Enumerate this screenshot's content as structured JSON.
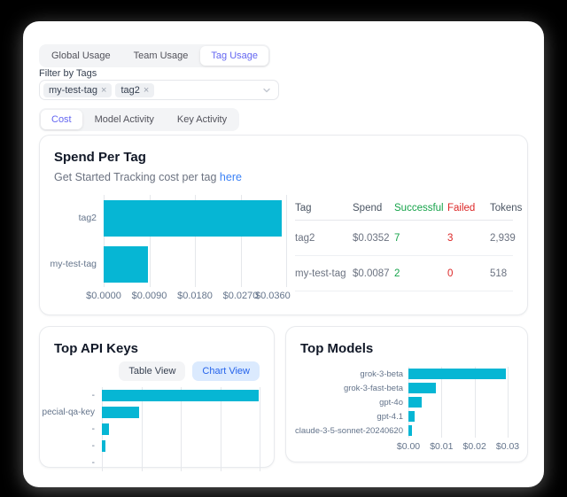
{
  "page": {
    "tabs": [
      {
        "label": "Global Usage",
        "active": false
      },
      {
        "label": "Team Usage",
        "active": false
      },
      {
        "label": "Tag Usage",
        "active": true
      }
    ],
    "filter": {
      "label": "Filter by Tags",
      "selected_tags": [
        "my-test-tag",
        "tag2"
      ]
    },
    "sub_tabs": [
      {
        "label": "Cost",
        "active": true
      },
      {
        "label": "Model Activity",
        "active": false
      },
      {
        "label": "Key Activity",
        "active": false
      }
    ]
  },
  "icons": {
    "remove_tag": "×",
    "chevron_down": "chevron-down"
  },
  "spend_card": {
    "title": "Spend Per Tag",
    "subtitle": "Get Started Tracking cost per tag",
    "subtitle_link": "here",
    "table": {
      "columns": [
        "Tag",
        "Spend",
        "Successful",
        "Failed",
        "Tokens"
      ],
      "rows": [
        {
          "tag": "tag2",
          "spend": "$0.0352",
          "successful": "7",
          "failed": "3",
          "tokens": "2,939"
        },
        {
          "tag": "my-test-tag",
          "spend": "$0.0087",
          "successful": "2",
          "failed": "0",
          "tokens": "518"
        }
      ]
    }
  },
  "api_keys_card": {
    "title": "Top API Keys",
    "table_view_label": "Table View",
    "chart_view_label": "Chart View",
    "active_view": "Chart View"
  },
  "models_card": {
    "title": "Top Models"
  },
  "colors": {
    "bar_cyan": "#06b6d4",
    "accent_purple": "#6366f1",
    "link_blue": "#3b82f6",
    "success_green": "#16a34a",
    "fail_red": "#dc2626",
    "chart_view_bg": "#dbeafe",
    "chart_view_text": "#2563eb"
  },
  "chart_data": [
    {
      "id": "spend_per_tag",
      "type": "bar",
      "orientation": "horizontal",
      "title": "Spend Per Tag",
      "categories": [
        "tag2",
        "my-test-tag"
      ],
      "values": [
        0.0352,
        0.0087
      ],
      "xlim": [
        0,
        0.036
      ],
      "xticks": [
        {
          "v": 0.0,
          "label": "$0.0000"
        },
        {
          "v": 0.009,
          "label": "$0.0090"
        },
        {
          "v": 0.018,
          "label": "$0.0180"
        },
        {
          "v": 0.027,
          "label": "$0.0270"
        },
        {
          "v": 0.036,
          "label": "$0.0360"
        }
      ],
      "bar_color": "#06b6d4",
      "grid": true,
      "legend": false
    },
    {
      "id": "top_api_keys",
      "type": "bar",
      "orientation": "horizontal",
      "title": "Top API Keys",
      "categories": [
        "-",
        "pecial-qa-key",
        "-",
        "-",
        "-"
      ],
      "values": [
        0.0398,
        0.0095,
        0.0017,
        0.0009,
        0
      ],
      "xlim": [
        0,
        0.04
      ],
      "xticks": [
        {
          "v": 0.0,
          "label": ""
        },
        {
          "v": 0.01,
          "label": ""
        },
        {
          "v": 0.02,
          "label": ""
        },
        {
          "v": 0.03,
          "label": ""
        },
        {
          "v": 0.04,
          "label": ""
        }
      ],
      "xaxis_labels_visible": false,
      "bar_color": "#06b6d4",
      "grid": true,
      "legend": false
    },
    {
      "id": "top_models",
      "type": "bar",
      "orientation": "horizontal",
      "title": "Top Models",
      "categories": [
        "grok-3-beta",
        "grok-3-fast-beta",
        "gpt-4o",
        "gpt-4.1",
        "claude-3-5-sonnet-20240620"
      ],
      "values": [
        0.0295,
        0.0082,
        0.0041,
        0.0019,
        0.001
      ],
      "xlim": [
        0,
        0.0316
      ],
      "xticks": [
        {
          "v": 0.0,
          "label": "$0.00"
        },
        {
          "v": 0.01,
          "label": "$0.01"
        },
        {
          "v": 0.02,
          "label": "$0.02"
        },
        {
          "v": 0.03,
          "label": "$0.03"
        }
      ],
      "bar_color": "#06b6d4",
      "grid": true,
      "legend": false
    }
  ]
}
